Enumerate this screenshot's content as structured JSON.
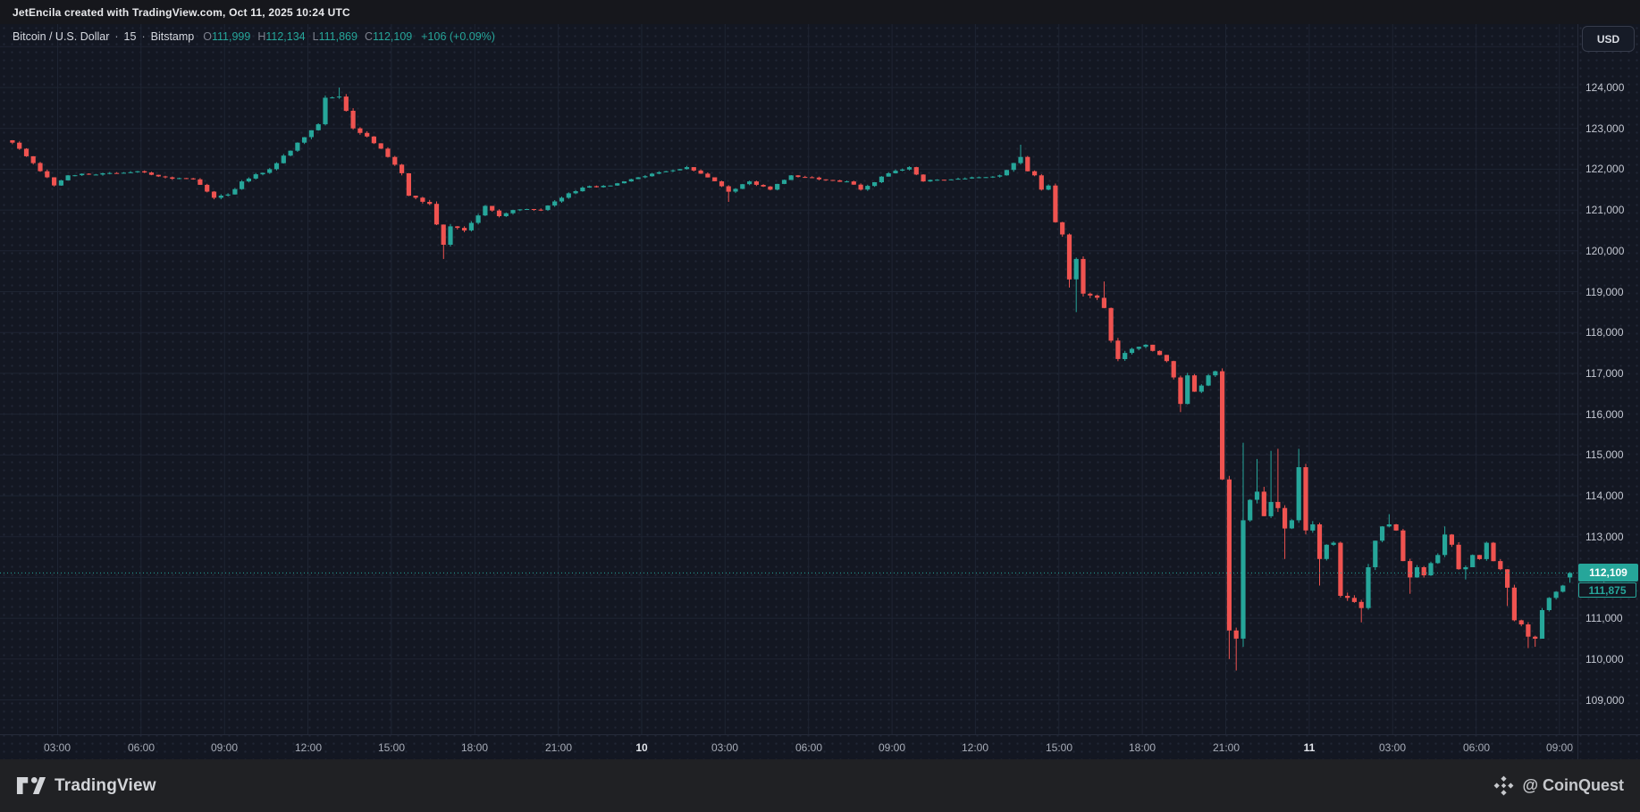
{
  "title_bar": {
    "text": "JetEncila created with TradingView.com, Oct 11, 2025 10:24 UTC"
  },
  "legend": {
    "symbol": "Bitcoin / U.S. Dollar",
    "separator": "·",
    "interval": "15",
    "exchange": "Bitstamp",
    "ohlc": [
      {
        "label": "O",
        "value": "111,999"
      },
      {
        "label": "H",
        "value": "112,134"
      },
      {
        "label": "L",
        "value": "111,869"
      },
      {
        "label": "C",
        "value": "112,109"
      }
    ],
    "change": "+106 (+0.09%)"
  },
  "price_axis": {
    "currency_button": "USD",
    "last_price_label": "112,109",
    "secondary_label": "111,875"
  },
  "footer": {
    "brand": "TradingView",
    "watermark": "@ CoinQuest",
    "tv-logo-icon": "tradingview-logo",
    "diamond-logo-icon": "coinquest-diamond-logo"
  },
  "colors": {
    "up": "#26a69a",
    "down": "#ef5350",
    "grid": "#1e2432",
    "accent": "#26a69a",
    "badge_text": "#ffffff"
  },
  "chart_data": {
    "type": "candlestick",
    "title": "Bitcoin / U.S. Dollar",
    "symbol": "BTCUSD",
    "interval_minutes": 15,
    "exchange": "Bitstamp",
    "current_bar": {
      "open": 111999,
      "high": 112134,
      "low": 111869,
      "close": 112109,
      "change": 106,
      "change_pct": 0.09
    },
    "price_line": 112109,
    "secondary_price": 111875,
    "num_candles": 225,
    "ylim": [
      108160,
      125550
    ],
    "y_ticks": [
      124000,
      123000,
      122000,
      121000,
      120000,
      119000,
      118000,
      117000,
      116000,
      115000,
      114000,
      113000,
      112000,
      111000,
      110000,
      109000
    ],
    "x_axis": {
      "first_tick_candle_index": 6.5,
      "candles_per_tick": 12,
      "ticks": [
        {
          "label": "03:00",
          "emphasis": false
        },
        {
          "label": "06:00",
          "emphasis": false
        },
        {
          "label": "09:00",
          "emphasis": false
        },
        {
          "label": "12:00",
          "emphasis": false
        },
        {
          "label": "15:00",
          "emphasis": false
        },
        {
          "label": "18:00",
          "emphasis": false
        },
        {
          "label": "21:00",
          "emphasis": false
        },
        {
          "label": "10",
          "emphasis": true
        },
        {
          "label": "03:00",
          "emphasis": false
        },
        {
          "label": "06:00",
          "emphasis": false
        },
        {
          "label": "09:00",
          "emphasis": false
        },
        {
          "label": "12:00",
          "emphasis": false
        },
        {
          "label": "15:00",
          "emphasis": false
        },
        {
          "label": "18:00",
          "emphasis": false
        },
        {
          "label": "21:00",
          "emphasis": false
        },
        {
          "label": "11",
          "emphasis": true
        },
        {
          "label": "03:00",
          "emphasis": false
        },
        {
          "label": "06:00",
          "emphasis": false
        },
        {
          "label": "09:00",
          "emphasis": false
        }
      ]
    },
    "anchors_note": "close-price path anchors estimated from chart: [candle_index, close_usd, typical_range_usd]",
    "anchors": [
      [
        0,
        122650,
        120
      ],
      [
        3,
        122150,
        140
      ],
      [
        5,
        121800,
        140
      ],
      [
        6,
        121600,
        150
      ],
      [
        8,
        121850,
        110
      ],
      [
        13,
        121900,
        90
      ],
      [
        18,
        121950,
        90
      ],
      [
        22,
        121800,
        90
      ],
      [
        26,
        121750,
        100
      ],
      [
        29,
        121300,
        140
      ],
      [
        31,
        121380,
        120
      ],
      [
        33,
        121700,
        110
      ],
      [
        37,
        122000,
        120
      ],
      [
        41,
        122650,
        160
      ],
      [
        44,
        123100,
        180
      ],
      [
        45,
        123750,
        220
      ],
      [
        47,
        123780,
        180
      ],
      [
        49,
        123000,
        220
      ],
      [
        51,
        122800,
        160
      ],
      [
        54,
        122300,
        160
      ],
      [
        56,
        121900,
        180
      ],
      [
        57,
        121350,
        200
      ],
      [
        59,
        121200,
        160
      ],
      [
        60,
        121150,
        160
      ],
      [
        62,
        120150,
        260
      ],
      [
        63,
        120600,
        200
      ],
      [
        65,
        120500,
        150
      ],
      [
        68,
        121100,
        140
      ],
      [
        70,
        120850,
        120
      ],
      [
        72,
        121000,
        110
      ],
      [
        76,
        121000,
        100
      ],
      [
        79,
        121300,
        110
      ],
      [
        82,
        121550,
        100
      ],
      [
        86,
        121600,
        90
      ],
      [
        90,
        121800,
        90
      ],
      [
        94,
        121950,
        90
      ],
      [
        97,
        122050,
        100
      ],
      [
        100,
        121800,
        100
      ],
      [
        103,
        121450,
        120
      ],
      [
        106,
        121700,
        100
      ],
      [
        109,
        121500,
        100
      ],
      [
        112,
        121850,
        90
      ],
      [
        116,
        121750,
        90
      ],
      [
        120,
        121700,
        90
      ],
      [
        122,
        121500,
        110
      ],
      [
        126,
        121900,
        100
      ],
      [
        129,
        122050,
        110
      ],
      [
        131,
        121700,
        130
      ],
      [
        135,
        121750,
        90
      ],
      [
        138,
        121800,
        80
      ],
      [
        142,
        121850,
        90
      ],
      [
        145,
        122300,
        160
      ],
      [
        146,
        121950,
        180
      ],
      [
        147,
        121850,
        140
      ],
      [
        148,
        121500,
        160
      ],
      [
        149,
        121600,
        120
      ],
      [
        150,
        120700,
        300
      ],
      [
        151,
        120400,
        200
      ],
      [
        152,
        119300,
        400
      ],
      [
        153,
        119800,
        300
      ],
      [
        154,
        118950,
        250
      ],
      [
        156,
        118850,
        180
      ],
      [
        157,
        118600,
        200
      ],
      [
        158,
        117800,
        280
      ],
      [
        159,
        117350,
        220
      ],
      [
        160,
        117500,
        180
      ],
      [
        161,
        117600,
        160
      ],
      [
        162,
        117650,
        140
      ],
      [
        163,
        117700,
        130
      ],
      [
        164,
        117550,
        130
      ],
      [
        165,
        117450,
        140
      ],
      [
        166,
        117300,
        160
      ],
      [
        167,
        116900,
        180
      ],
      [
        168,
        116250,
        220
      ],
      [
        169,
        116950,
        200
      ],
      [
        170,
        116550,
        180
      ],
      [
        171,
        116700,
        160
      ],
      [
        172,
        116950,
        150
      ],
      [
        173,
        117050,
        130
      ],
      [
        174,
        114400,
        700
      ],
      [
        175,
        110700,
        900
      ],
      [
        176,
        110500,
        500
      ],
      [
        177,
        113400,
        900
      ],
      [
        178,
        113900,
        500
      ],
      [
        179,
        114100,
        450
      ],
      [
        180,
        113500,
        400
      ],
      [
        181,
        113850,
        380
      ],
      [
        182,
        113700,
        350
      ],
      [
        183,
        113200,
        350
      ],
      [
        184,
        113400,
        300
      ],
      [
        185,
        114700,
        350
      ],
      [
        186,
        113150,
        400
      ],
      [
        187,
        113300,
        280
      ],
      [
        188,
        112450,
        300
      ],
      [
        189,
        112800,
        250
      ],
      [
        190,
        112850,
        220
      ],
      [
        191,
        111550,
        350
      ],
      [
        192,
        111500,
        250
      ],
      [
        193,
        111400,
        220
      ],
      [
        194,
        111250,
        240
      ],
      [
        195,
        112250,
        280
      ],
      [
        196,
        112900,
        250
      ],
      [
        197,
        113250,
        220
      ],
      [
        198,
        113300,
        200
      ],
      [
        199,
        113150,
        200
      ],
      [
        200,
        112400,
        250
      ],
      [
        201,
        112000,
        220
      ],
      [
        202,
        112250,
        180
      ],
      [
        203,
        112050,
        170
      ],
      [
        204,
        112350,
        170
      ],
      [
        205,
        112550,
        170
      ],
      [
        206,
        113050,
        180
      ],
      [
        207,
        112800,
        180
      ],
      [
        208,
        112200,
        220
      ],
      [
        209,
        112250,
        160
      ],
      [
        210,
        112550,
        160
      ],
      [
        211,
        112450,
        150
      ],
      [
        212,
        112850,
        160
      ],
      [
        213,
        112400,
        180
      ],
      [
        214,
        112200,
        160
      ],
      [
        215,
        111750,
        220
      ],
      [
        216,
        110950,
        250
      ],
      [
        217,
        110850,
        180
      ],
      [
        218,
        110550,
        180
      ],
      [
        219,
        110500,
        150
      ],
      [
        220,
        111200,
        200
      ],
      [
        221,
        111500,
        160
      ],
      [
        222,
        111650,
        140
      ],
      [
        223,
        111800,
        130
      ],
      [
        224,
        112109,
        120
      ]
    ],
    "wick_overrides": [
      [
        47,
        "h",
        124000
      ],
      [
        62,
        "l",
        119800
      ],
      [
        103,
        "l",
        121200
      ],
      [
        145,
        "h",
        122600
      ],
      [
        152,
        "l",
        119100
      ],
      [
        153,
        "l",
        118500
      ],
      [
        157,
        "h",
        119250
      ],
      [
        168,
        "l",
        116050
      ],
      [
        175,
        "l",
        110000
      ],
      [
        176,
        "l",
        109720
      ],
      [
        177,
        "h",
        115300
      ],
      [
        179,
        "h",
        114900
      ],
      [
        181,
        "h",
        115100
      ],
      [
        182,
        "h",
        115150
      ],
      [
        183,
        "l",
        112450
      ],
      [
        185,
        "h",
        115150
      ],
      [
        188,
        "l",
        111800
      ],
      [
        194,
        "l",
        110900
      ],
      [
        198,
        "h",
        113550
      ],
      [
        201,
        "l",
        111600
      ],
      [
        206,
        "h",
        113250
      ],
      [
        209,
        "l",
        111950
      ],
      [
        215,
        "l",
        111300
      ],
      [
        218,
        "l",
        110270
      ],
      [
        219,
        "l",
        110300
      ]
    ]
  }
}
